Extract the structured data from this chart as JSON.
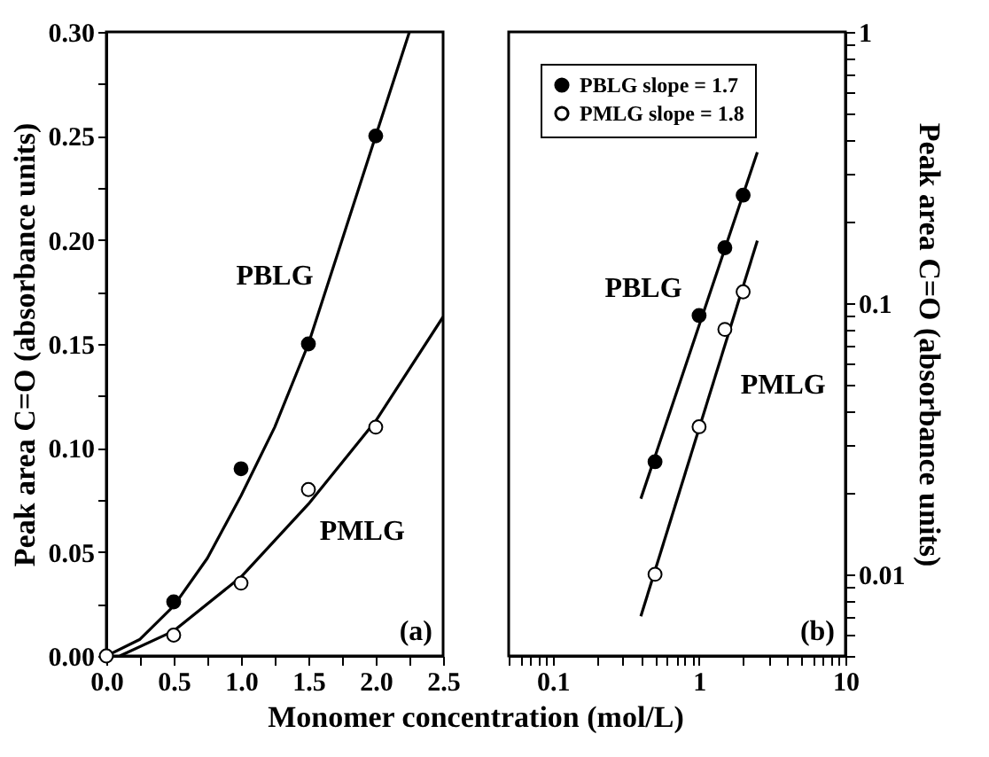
{
  "chart_data": [
    {
      "type": "scatter",
      "xlabel": "Monomer concentration (mol/L)",
      "ylabel": "Peak area C=O (absorbance units)",
      "xlim": [
        0,
        2.5
      ],
      "ylim": [
        0,
        0.3
      ],
      "xticks": [
        {
          "value": 0,
          "label": "0.0"
        },
        {
          "value": 0.25,
          "label": null
        },
        {
          "value": 0.5,
          "label": "0.5"
        },
        {
          "value": 0.75,
          "label": null
        },
        {
          "value": 1,
          "label": "1.0"
        },
        {
          "value": 1.25,
          "label": null
        },
        {
          "value": 1.5,
          "label": "1.5"
        },
        {
          "value": 1.75,
          "label": null
        },
        {
          "value": 2,
          "label": "2.0"
        },
        {
          "value": 2.25,
          "label": null
        },
        {
          "value": 2.5,
          "label": "2.5"
        }
      ],
      "yticks": [
        {
          "value": 0,
          "label": "0.00"
        },
        {
          "value": 0.025,
          "label": null
        },
        {
          "value": 0.05,
          "label": "0.05"
        },
        {
          "value": 0.075,
          "label": null
        },
        {
          "value": 0.1,
          "label": "0.10"
        },
        {
          "value": 0.125,
          "label": null
        },
        {
          "value": 0.15,
          "label": "0.15"
        },
        {
          "value": 0.175,
          "label": null
        },
        {
          "value": 0.2,
          "label": "0.20"
        },
        {
          "value": 0.225,
          "label": null
        },
        {
          "value": 0.25,
          "label": "0.25"
        },
        {
          "value": 0.275,
          "label": null
        },
        {
          "value": 0.3,
          "label": "0.30"
        }
      ],
      "grid": false,
      "legend": false,
      "annotations": [
        "PBLG",
        "PMLG",
        "(a)"
      ],
      "series": [
        {
          "type": "line",
          "marker": "none",
          "color": "#000000",
          "x": [
            0,
            0.25,
            0.5,
            0.75,
            1,
            1.25,
            1.5,
            1.75,
            2,
            2.25
          ],
          "values": [
            0,
            0.008,
            0.024,
            0.047,
            0.077,
            0.11,
            0.15,
            0.2,
            0.25,
            0.3
          ]
        },
        {
          "type": "line",
          "marker": "none",
          "color": "#000000",
          "x": [
            0.1,
            0.5,
            1,
            1.5,
            2,
            2.5
          ],
          "values": [
            0,
            0.012,
            0.038,
            0.073,
            0.113,
            0.163
          ]
        },
        {
          "marker": "circle",
          "color": "#000000",
          "x": [
            0.5,
            1,
            1.5,
            2
          ],
          "values": [
            0.026,
            0.09,
            0.15,
            0.25
          ]
        },
        {
          "marker": "circle",
          "color": "#ffffff",
          "x": [
            0,
            0.5,
            1,
            1.5,
            2
          ],
          "values": [
            0,
            0.01,
            0.035,
            0.08,
            0.11
          ]
        }
      ]
    },
    {
      "type": "scatter",
      "ylabel": "Peak area C=O (absorbance units)",
      "xlim": [
        0.05,
        10
      ],
      "ylim": [
        0.005,
        1
      ],
      "log": "xy",
      "xticks": [
        {
          "value": 0.05,
          "label": null
        },
        {
          "value": 0.06,
          "label": null
        },
        {
          "value": 0.07,
          "label": null
        },
        {
          "value": 0.08,
          "label": null
        },
        {
          "value": 0.09,
          "label": null
        },
        0.1,
        {
          "value": 0.2,
          "label": null
        },
        {
          "value": 0.3,
          "label": null
        },
        {
          "value": 0.4,
          "label": null
        },
        {
          "value": 0.5,
          "label": null
        },
        {
          "value": 0.6,
          "label": null
        },
        {
          "value": 0.7,
          "label": null
        },
        {
          "value": 0.8,
          "label": null
        },
        {
          "value": 0.9,
          "label": null
        },
        1,
        {
          "value": 2,
          "label": null
        },
        {
          "value": 3,
          "label": null
        },
        {
          "value": 4,
          "label": null
        },
        {
          "value": 5,
          "label": null
        },
        {
          "value": 6,
          "label": null
        },
        {
          "value": 7,
          "label": null
        },
        {
          "value": 8,
          "label": null
        },
        {
          "value": 9,
          "label": null
        },
        10
      ],
      "yticks": [
        {
          "value": 0.005,
          "label": null
        },
        {
          "value": 0.006,
          "label": null
        },
        {
          "value": 0.007,
          "label": null
        },
        {
          "value": 0.008,
          "label": null
        },
        {
          "value": 0.009,
          "label": null
        },
        0.01,
        {
          "value": 0.02,
          "label": null
        },
        {
          "value": 0.03,
          "label": null
        },
        {
          "value": 0.04,
          "label": null
        },
        {
          "value": 0.05,
          "label": null
        },
        {
          "value": 0.06,
          "label": null
        },
        {
          "value": 0.07,
          "label": null
        },
        {
          "value": 0.08,
          "label": null
        },
        {
          "value": 0.09,
          "label": null
        },
        0.1,
        {
          "value": 0.2,
          "label": null
        },
        {
          "value": 0.3,
          "label": null
        },
        {
          "value": 0.4,
          "label": null
        },
        {
          "value": 0.5,
          "label": null
        },
        {
          "value": 0.6,
          "label": null
        },
        {
          "value": 0.7,
          "label": null
        },
        {
          "value": 0.8,
          "label": null
        },
        {
          "value": 0.9,
          "label": null
        },
        1
      ],
      "grid": false,
      "legend": "top left",
      "annotations": [
        "PBLG",
        "PMLG",
        "(b)"
      ],
      "series": [
        {
          "type": "line",
          "marker": "none",
          "color": "#000000",
          "x": [
            0.4,
            2.5
          ],
          "values": [
            0.019,
            0.36
          ]
        },
        {
          "type": "line",
          "marker": "none",
          "color": "#000000",
          "x": [
            0.4,
            2.5
          ],
          "values": [
            0.007,
            0.17
          ]
        },
        {
          "name": "PBLG slope = 1.7",
          "marker": "circle",
          "color": "#000000",
          "x": [
            0.5,
            1,
            1.5,
            2
          ],
          "values": [
            0.026,
            0.09,
            0.16,
            0.25
          ]
        },
        {
          "name": "PMLG slope = 1.8",
          "marker": "circle",
          "color": "#ffffff",
          "x": [
            0.5,
            1,
            1.5,
            2
          ],
          "values": [
            0.01,
            0.035,
            0.08,
            0.11
          ]
        }
      ]
    }
  ]
}
